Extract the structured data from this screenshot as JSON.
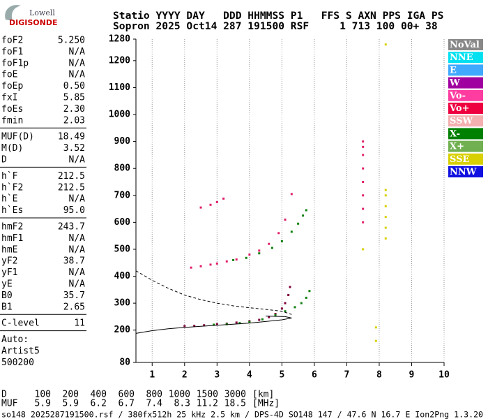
{
  "header": {
    "logo_top": "Lowell",
    "logo_bottom": "DIGISONDE",
    "line1": "Statio YYYY DAY   DDD HHMMSS P1   FFS S AXN PPS IGA PS",
    "line2": "Sopron 2025 Oct14 287 191500 RSF     1 713 100 00+ 38"
  },
  "parameters": [
    [
      [
        "foF2",
        "5.250"
      ],
      [
        "foF1",
        "N/A"
      ],
      [
        "foF1p",
        "N/A"
      ],
      [
        "foE",
        "N/A"
      ],
      [
        "foEp",
        "0.50"
      ],
      [
        "fxI",
        "5.85"
      ],
      [
        "foEs",
        "2.30"
      ],
      [
        "fmin",
        "2.03"
      ]
    ],
    [
      [
        "MUF(D)",
        "18.49"
      ],
      [
        "M(D)",
        "3.52"
      ],
      [
        "D",
        "N/A"
      ]
    ],
    [
      [
        "h`F",
        "212.5"
      ],
      [
        "h`F2",
        "212.5"
      ],
      [
        "h`E",
        "N/A"
      ],
      [
        "h`Es",
        "95.0"
      ]
    ],
    [
      [
        "hmF2",
        "243.7"
      ],
      [
        "hmF1",
        "N/A"
      ],
      [
        "hmE",
        "N/A"
      ],
      [
        "yF2",
        "38.7"
      ],
      [
        "yF1",
        "N/A"
      ],
      [
        "yE",
        "N/A"
      ],
      [
        "B0",
        "35.7"
      ],
      [
        "B1",
        "2.65"
      ]
    ],
    [
      [
        "C-level",
        "11"
      ]
    ]
  ],
  "auto": [
    "Auto:",
    "Artist5",
    "500200"
  ],
  "chart_data": {
    "type": "scatter",
    "xlim": [
      0.5,
      10
    ],
    "xticks": [
      1,
      2,
      3,
      4,
      5,
      6,
      7,
      8,
      9,
      10
    ],
    "ylim": [
      80,
      1280
    ],
    "yticks": [
      80,
      200,
      300,
      400,
      500,
      600,
      700,
      800,
      900,
      1000,
      1100,
      1200,
      1280
    ],
    "grid": true,
    "legend": [
      {
        "name": "NoVal",
        "color": "#888888"
      },
      {
        "name": "NNE",
        "color": "#00e0f0"
      },
      {
        "name": "E",
        "color": "#40a8ff"
      },
      {
        "name": "W",
        "color": "#a000a0"
      },
      {
        "name": "Vo-",
        "color": "#ff3ca0"
      },
      {
        "name": "Vo+",
        "color": "#ee0040"
      },
      {
        "name": "SSW",
        "color": "#f4b0b0"
      },
      {
        "name": "X-",
        "color": "#008000"
      },
      {
        "name": "X+",
        "color": "#70b050"
      },
      {
        "name": "SSE",
        "color": "#d8d000"
      },
      {
        "name": "NNW",
        "color": "#1010e0"
      }
    ],
    "series": [
      {
        "color": "#80003a",
        "style": "points",
        "x": [
          2.0,
          2.3,
          2.6,
          3.0,
          3.3,
          3.6,
          4.0,
          4.3,
          4.6,
          4.8,
          5.0,
          5.1,
          5.2,
          5.25
        ],
        "y": [
          215,
          216,
          218,
          222,
          224,
          228,
          233,
          238,
          248,
          260,
          280,
          300,
          330,
          360
        ]
      },
      {
        "color": "#108010",
        "style": "points",
        "x": [
          2.9,
          3.3,
          3.7,
          4.0,
          4.4,
          4.8,
          5.1,
          5.4,
          5.6,
          5.75,
          5.85
        ],
        "y": [
          220,
          222,
          226,
          230,
          240,
          255,
          270,
          285,
          300,
          320,
          345
        ]
      },
      {
        "color": "#e0206a",
        "style": "points",
        "x": [
          2.2,
          2.5,
          2.8,
          3.0,
          3.3,
          3.6,
          4.0,
          4.3,
          4.6,
          4.9,
          5.1
        ],
        "y": [
          432,
          437,
          443,
          447,
          455,
          462,
          480,
          495,
          520,
          560,
          610
        ]
      },
      {
        "color": "#108010",
        "style": "points",
        "x": [
          3.5,
          3.9,
          4.3,
          4.7,
          5.0,
          5.3,
          5.5,
          5.65,
          5.75
        ],
        "y": [
          460,
          468,
          485,
          505,
          530,
          565,
          595,
          625,
          645
        ]
      },
      {
        "color": "#e0206a",
        "style": "points",
        "x": [
          2.5,
          2.8,
          3.0,
          3.2,
          5.3
        ],
        "y": [
          655,
          665,
          675,
          688,
          705
        ]
      },
      {
        "color": "#e0206a",
        "style": "points",
        "x": [
          7.5,
          7.5,
          7.5,
          7.5,
          7.5,
          7.5,
          7.5,
          7.5
        ],
        "y": [
          600,
          650,
          700,
          750,
          800,
          850,
          880,
          900
        ]
      },
      {
        "color": "#d8d000",
        "style": "points",
        "x": [
          8.2,
          8.2,
          8.2,
          8.2,
          8.2,
          8.2,
          7.9,
          7.9,
          8.2,
          7.5
        ],
        "y": [
          540,
          580,
          620,
          660,
          700,
          720,
          160,
          210,
          1260,
          500
        ]
      },
      {
        "color": "#000000",
        "style": "dashed",
        "x": [
          0.5,
          1.0,
          1.5,
          2.0,
          2.5,
          3.0,
          3.5,
          4.0,
          4.5,
          5.0,
          5.3
        ],
        "y": [
          420,
          385,
          355,
          330,
          313,
          300,
          290,
          283,
          277,
          270,
          258
        ]
      },
      {
        "color": "#000000",
        "style": "solid",
        "x": [
          0.5,
          1.0,
          1.5,
          2.0,
          2.5,
          3.0,
          3.5,
          4.0,
          4.5,
          5.0,
          5.3,
          5.1,
          4.5
        ],
        "y": [
          188,
          198,
          205,
          210,
          214,
          218,
          222,
          226,
          232,
          238,
          245,
          250,
          252
        ]
      }
    ]
  },
  "bottom": {
    "rows": [
      {
        "label": "D",
        "values": [
          100,
          200,
          400,
          600,
          800,
          1000,
          1500,
          3000
        ],
        "unit": "[km]"
      },
      {
        "label": "MUF",
        "values": [
          5.9,
          5.9,
          6.2,
          6.7,
          7.4,
          8.3,
          11.2,
          18.5
        ],
        "unit": "[MHz]"
      }
    ],
    "footer": "so148_2025287191500.rsf / 380fx512h 25 kHz 2.5 km / DPS-4D SO148 147 / 47.6 N 16.7 E Ion2Png 1.3.20"
  }
}
